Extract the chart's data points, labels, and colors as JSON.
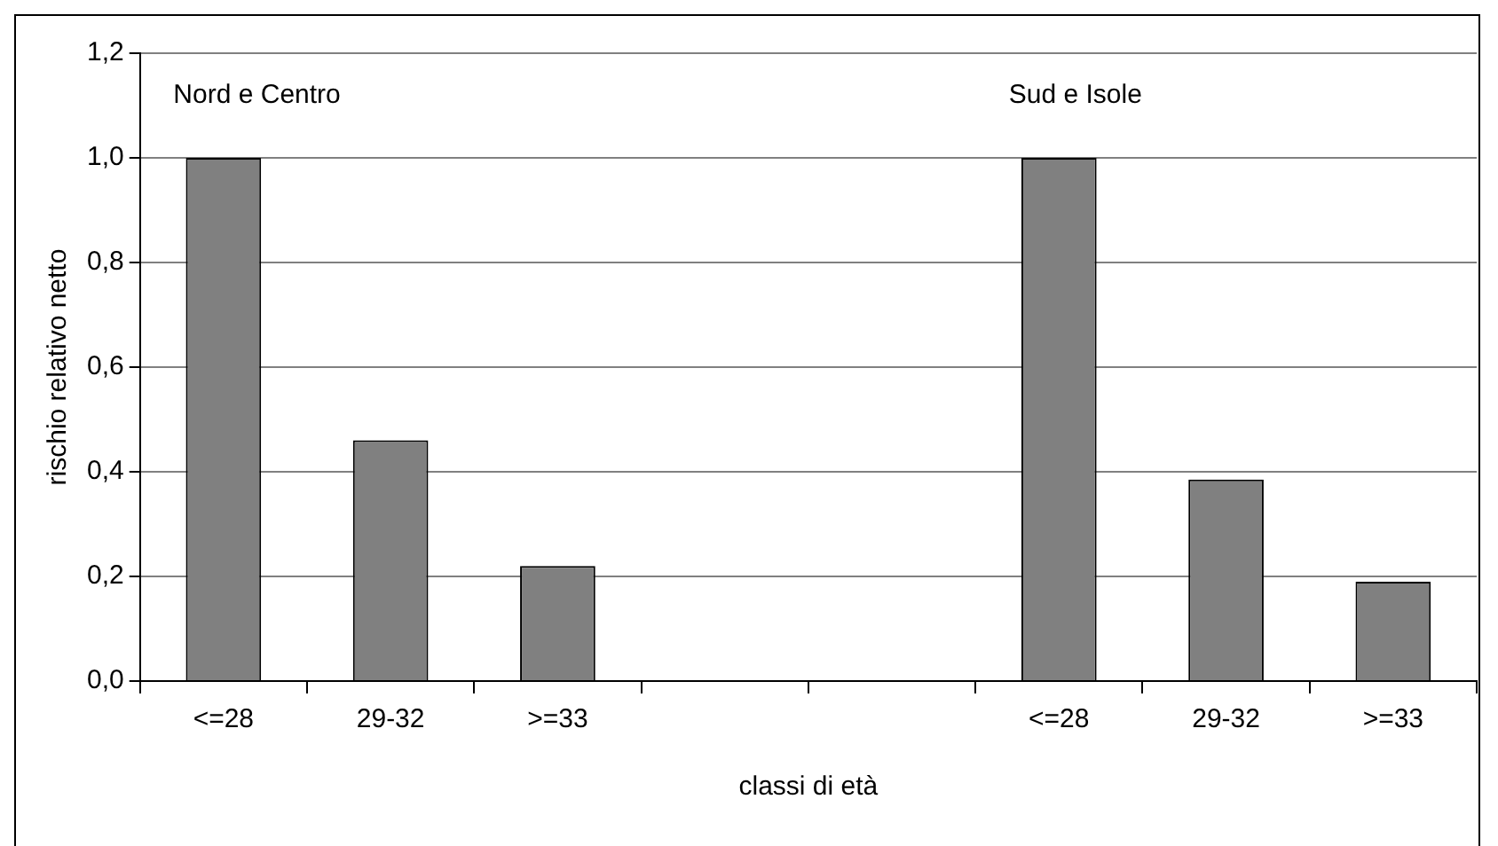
{
  "chart_data": {
    "type": "bar",
    "xlabel": "classi di età",
    "ylabel": "rischio relativo netto",
    "annotations": [
      "Nord e Centro",
      "Sud e Isole"
    ],
    "categories": [
      "<=28",
      "29-32",
      ">=33",
      null,
      null,
      "<=28",
      "29-32",
      ">=33"
    ],
    "values": [
      1.0,
      0.46,
      0.22,
      null,
      null,
      1.0,
      0.385,
      0.19
    ],
    "color": "#808080",
    "ylim": [
      0,
      1.2
    ],
    "yticks": [
      {
        "value": 0,
        "label": "0,0"
      },
      {
        "value": 0.2,
        "label": "0,2"
      },
      {
        "value": 0.4,
        "label": "0,4"
      },
      {
        "value": 0.6,
        "label": "0,6"
      },
      {
        "value": 0.8,
        "label": "0,8"
      },
      {
        "value": 1.0,
        "label": "1,0"
      },
      {
        "value": 1.2,
        "label": "1,2"
      }
    ],
    "grid": "y",
    "legend": false
  }
}
